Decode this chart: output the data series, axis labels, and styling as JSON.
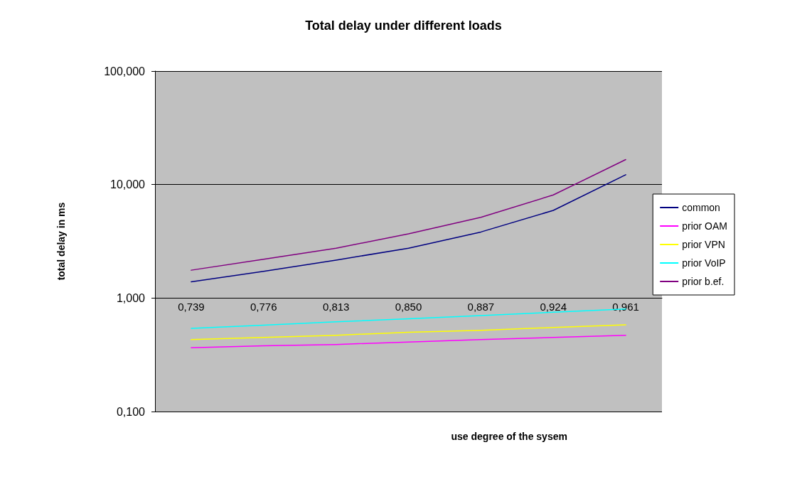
{
  "chart_data": {
    "type": "line",
    "title": "Total delay under different loads",
    "xlabel": "use degree of the sysem",
    "ylabel": "total delay in ms",
    "categories": [
      "0,739",
      "0,776",
      "0,813",
      "0,850",
      "0,887",
      "0,924",
      "0,961"
    ],
    "series": [
      {
        "name": "common",
        "color": "#000080",
        "values": [
          1.39,
          1.72,
          2.16,
          2.75,
          3.82,
          5.92,
          12.2
        ]
      },
      {
        "name": "prior OAM",
        "color": "#ff00ff",
        "values": [
          0.365,
          0.38,
          0.39,
          0.41,
          0.43,
          0.45,
          0.47
        ]
      },
      {
        "name": "prior VPN",
        "color": "#ffff00",
        "values": [
          0.43,
          0.45,
          0.47,
          0.5,
          0.52,
          0.55,
          0.58
        ]
      },
      {
        "name": "prior VoIP",
        "color": "#00ffff",
        "values": [
          0.54,
          0.577,
          0.617,
          0.657,
          0.7,
          0.75,
          0.8
        ]
      },
      {
        "name": "prior b.ef.",
        "color": "#800080",
        "values": [
          1.76,
          2.2,
          2.75,
          3.68,
          5.14,
          8.1,
          16.6
        ]
      }
    ],
    "log": "y",
    "ylim": [
      0.1,
      100
    ],
    "yticks": [
      {
        "value": 0.1,
        "label": "0,100"
      },
      {
        "value": 1,
        "label": "1,000"
      },
      {
        "value": 10,
        "label": "10,000"
      },
      {
        "value": 100,
        "label": "100,000"
      }
    ],
    "grid": "y",
    "legend": "right",
    "marker": "none",
    "line_style": "solid"
  }
}
